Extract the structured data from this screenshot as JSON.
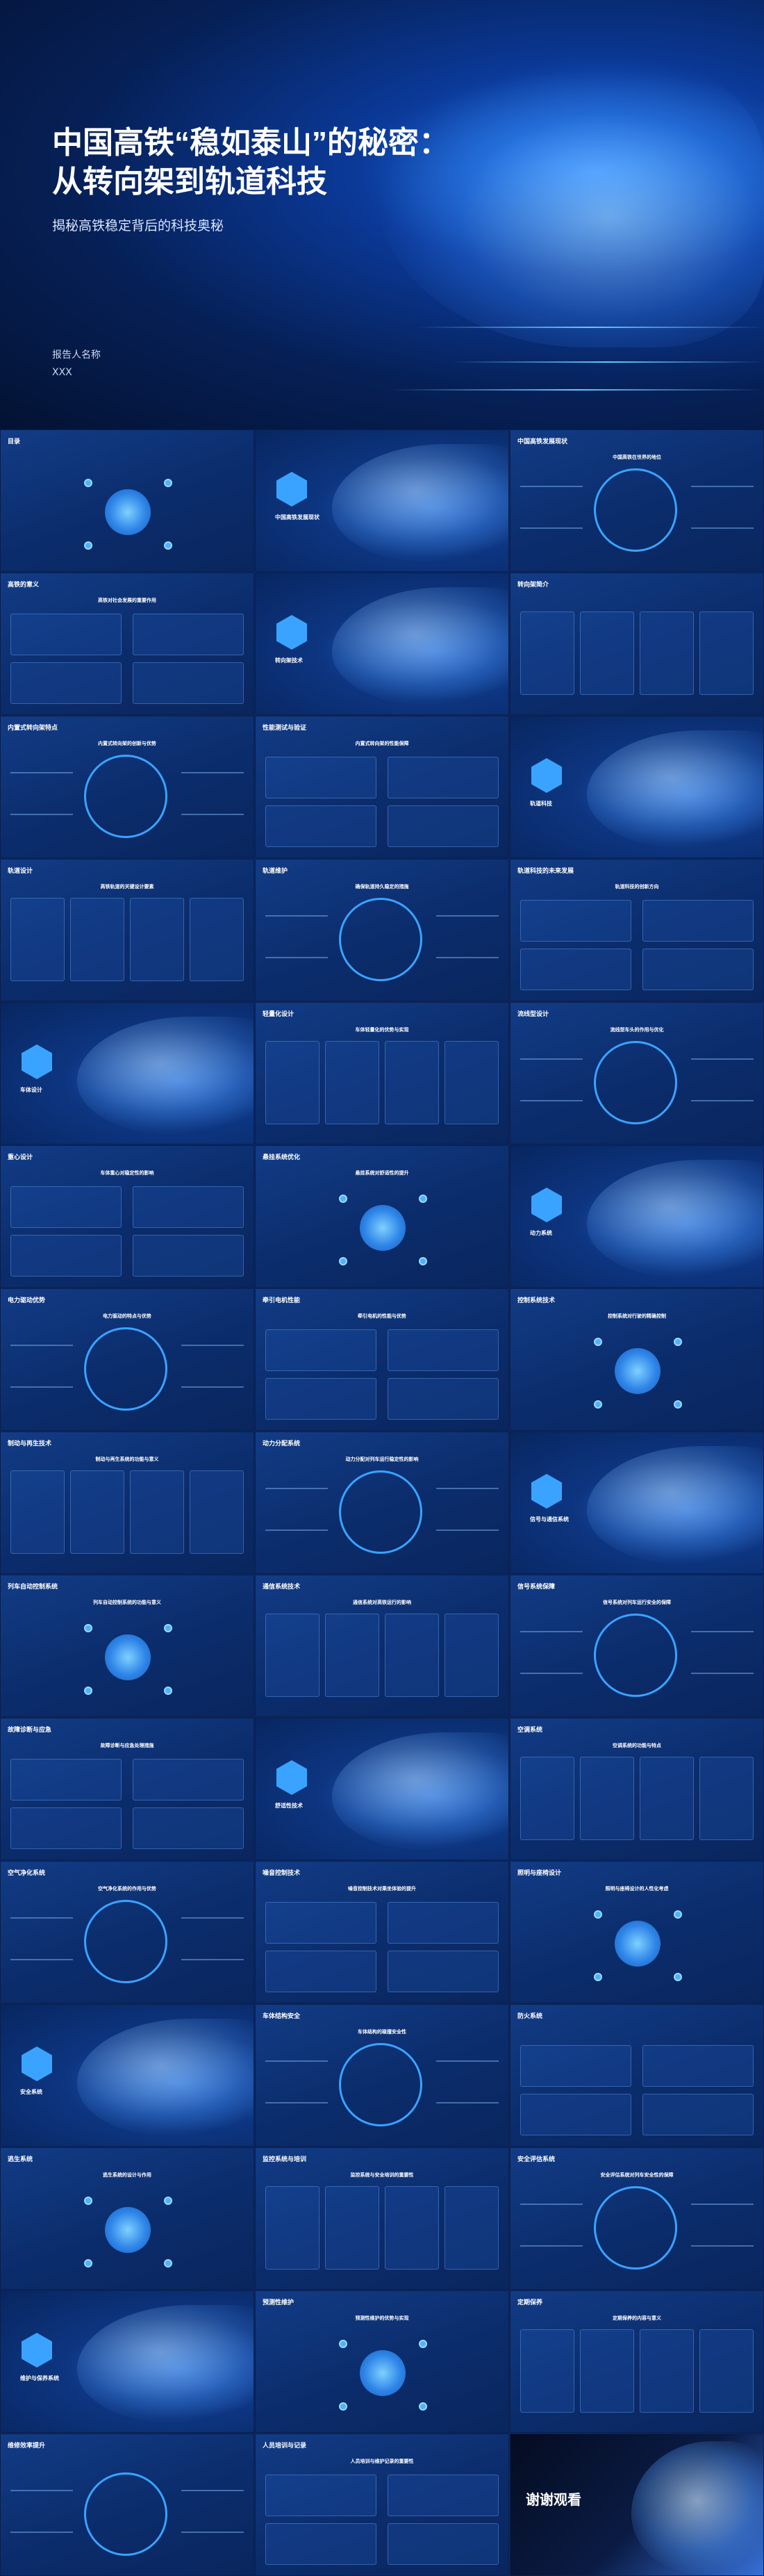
{
  "cover": {
    "title_line1": "中国高铁“稳如泰山”的秘密：",
    "title_line2": "从转向架到轨道科技",
    "subtitle": "揭秘高铁稳定背后的科技奥秘",
    "reporter_label": "报告人名称",
    "reporter_name": "XXX"
  },
  "slides": [
    {
      "title": "目录",
      "subtitle": ""
    },
    {
      "title": "",
      "subtitle": "中国高铁发展现状"
    },
    {
      "title": "中国高铁发展现状",
      "subtitle": "中国高铁在世界的地位"
    },
    {
      "title": "高铁的意义",
      "subtitle": "高铁对社会发展的重要作用"
    },
    {
      "title": "",
      "subtitle": "转向架技术"
    },
    {
      "title": "转向架简介",
      "subtitle": ""
    },
    {
      "title": "内置式转向架特点",
      "subtitle": "内置式转向架的创新与优势"
    },
    {
      "title": "性能测试与验证",
      "subtitle": "内置式转向架的性能保障"
    },
    {
      "title": "",
      "subtitle": "轨道科技"
    },
    {
      "title": "轨道设计",
      "subtitle": "高铁轨道的关键设计要素"
    },
    {
      "title": "轨道维护",
      "subtitle": "确保轨道持久稳定的措施"
    },
    {
      "title": "轨道科技的未来发展",
      "subtitle": "轨道科技的创新方向"
    },
    {
      "title": "",
      "subtitle": "车体设计"
    },
    {
      "title": "轻量化设计",
      "subtitle": "车体轻量化的优势与实现"
    },
    {
      "title": "流线型设计",
      "subtitle": "流线型车头的作用与优化"
    },
    {
      "title": "重心设计",
      "subtitle": "车体重心对稳定性的影响"
    },
    {
      "title": "悬挂系统优化",
      "subtitle": "悬挂系统对舒适性的提升"
    },
    {
      "title": "",
      "subtitle": "动力系统"
    },
    {
      "title": "电力驱动优势",
      "subtitle": "电力驱动的特点与优势"
    },
    {
      "title": "牵引电机性能",
      "subtitle": "牵引电机的性能与优势"
    },
    {
      "title": "控制系统技术",
      "subtitle": "控制系统对行驶的精确控制"
    },
    {
      "title": "制动与再生技术",
      "subtitle": "制动与再生系统的功能与意义"
    },
    {
      "title": "动力分配系统",
      "subtitle": "动力分配对列车运行稳定性的影响"
    },
    {
      "title": "",
      "subtitle": "信号与通信系统"
    },
    {
      "title": "列车自动控制系统",
      "subtitle": "列车自动控制系统的功能与意义"
    },
    {
      "title": "通信系统技术",
      "subtitle": "通信系统对高铁运行的影响"
    },
    {
      "title": "信号系统保障",
      "subtitle": "信号系统对列车运行安全的保障"
    },
    {
      "title": "故障诊断与应急",
      "subtitle": "故障诊断与应急处理措施"
    },
    {
      "title": "",
      "subtitle": "舒适性技术"
    },
    {
      "title": "空调系统",
      "subtitle": "空调系统的功能与特点"
    },
    {
      "title": "空气净化系统",
      "subtitle": "空气净化系统的作用与优势"
    },
    {
      "title": "噪音控制技术",
      "subtitle": "噪音控制技术对乘坐体验的提升"
    },
    {
      "title": "照明与座椅设计",
      "subtitle": "照明与座椅设计的人性化考虑"
    },
    {
      "title": "",
      "subtitle": "安全系统"
    },
    {
      "title": "车体结构安全",
      "subtitle": "车体结构的碰撞安全性"
    },
    {
      "title": "防火系统",
      "subtitle": ""
    },
    {
      "title": "逃生系统",
      "subtitle": "逃生系统的设计与作用"
    },
    {
      "title": "监控系统与培训",
      "subtitle": "监控系统与安全培训的重要性"
    },
    {
      "title": "安全评估系统",
      "subtitle": "安全评估系统对列车安全性的保障"
    },
    {
      "title": "",
      "subtitle": "维护与保养系统"
    },
    {
      "title": "预测性维护",
      "subtitle": "预测性维护的优势与实现"
    },
    {
      "title": "定期保养",
      "subtitle": "定期保养的内容与意义"
    },
    {
      "title": "维修效率提升",
      "subtitle": ""
    },
    {
      "title": "人员培训与记录",
      "subtitle": "人员培训与维护记录的重要性"
    },
    {
      "title": "谢谢观看",
      "subtitle": ""
    }
  ]
}
